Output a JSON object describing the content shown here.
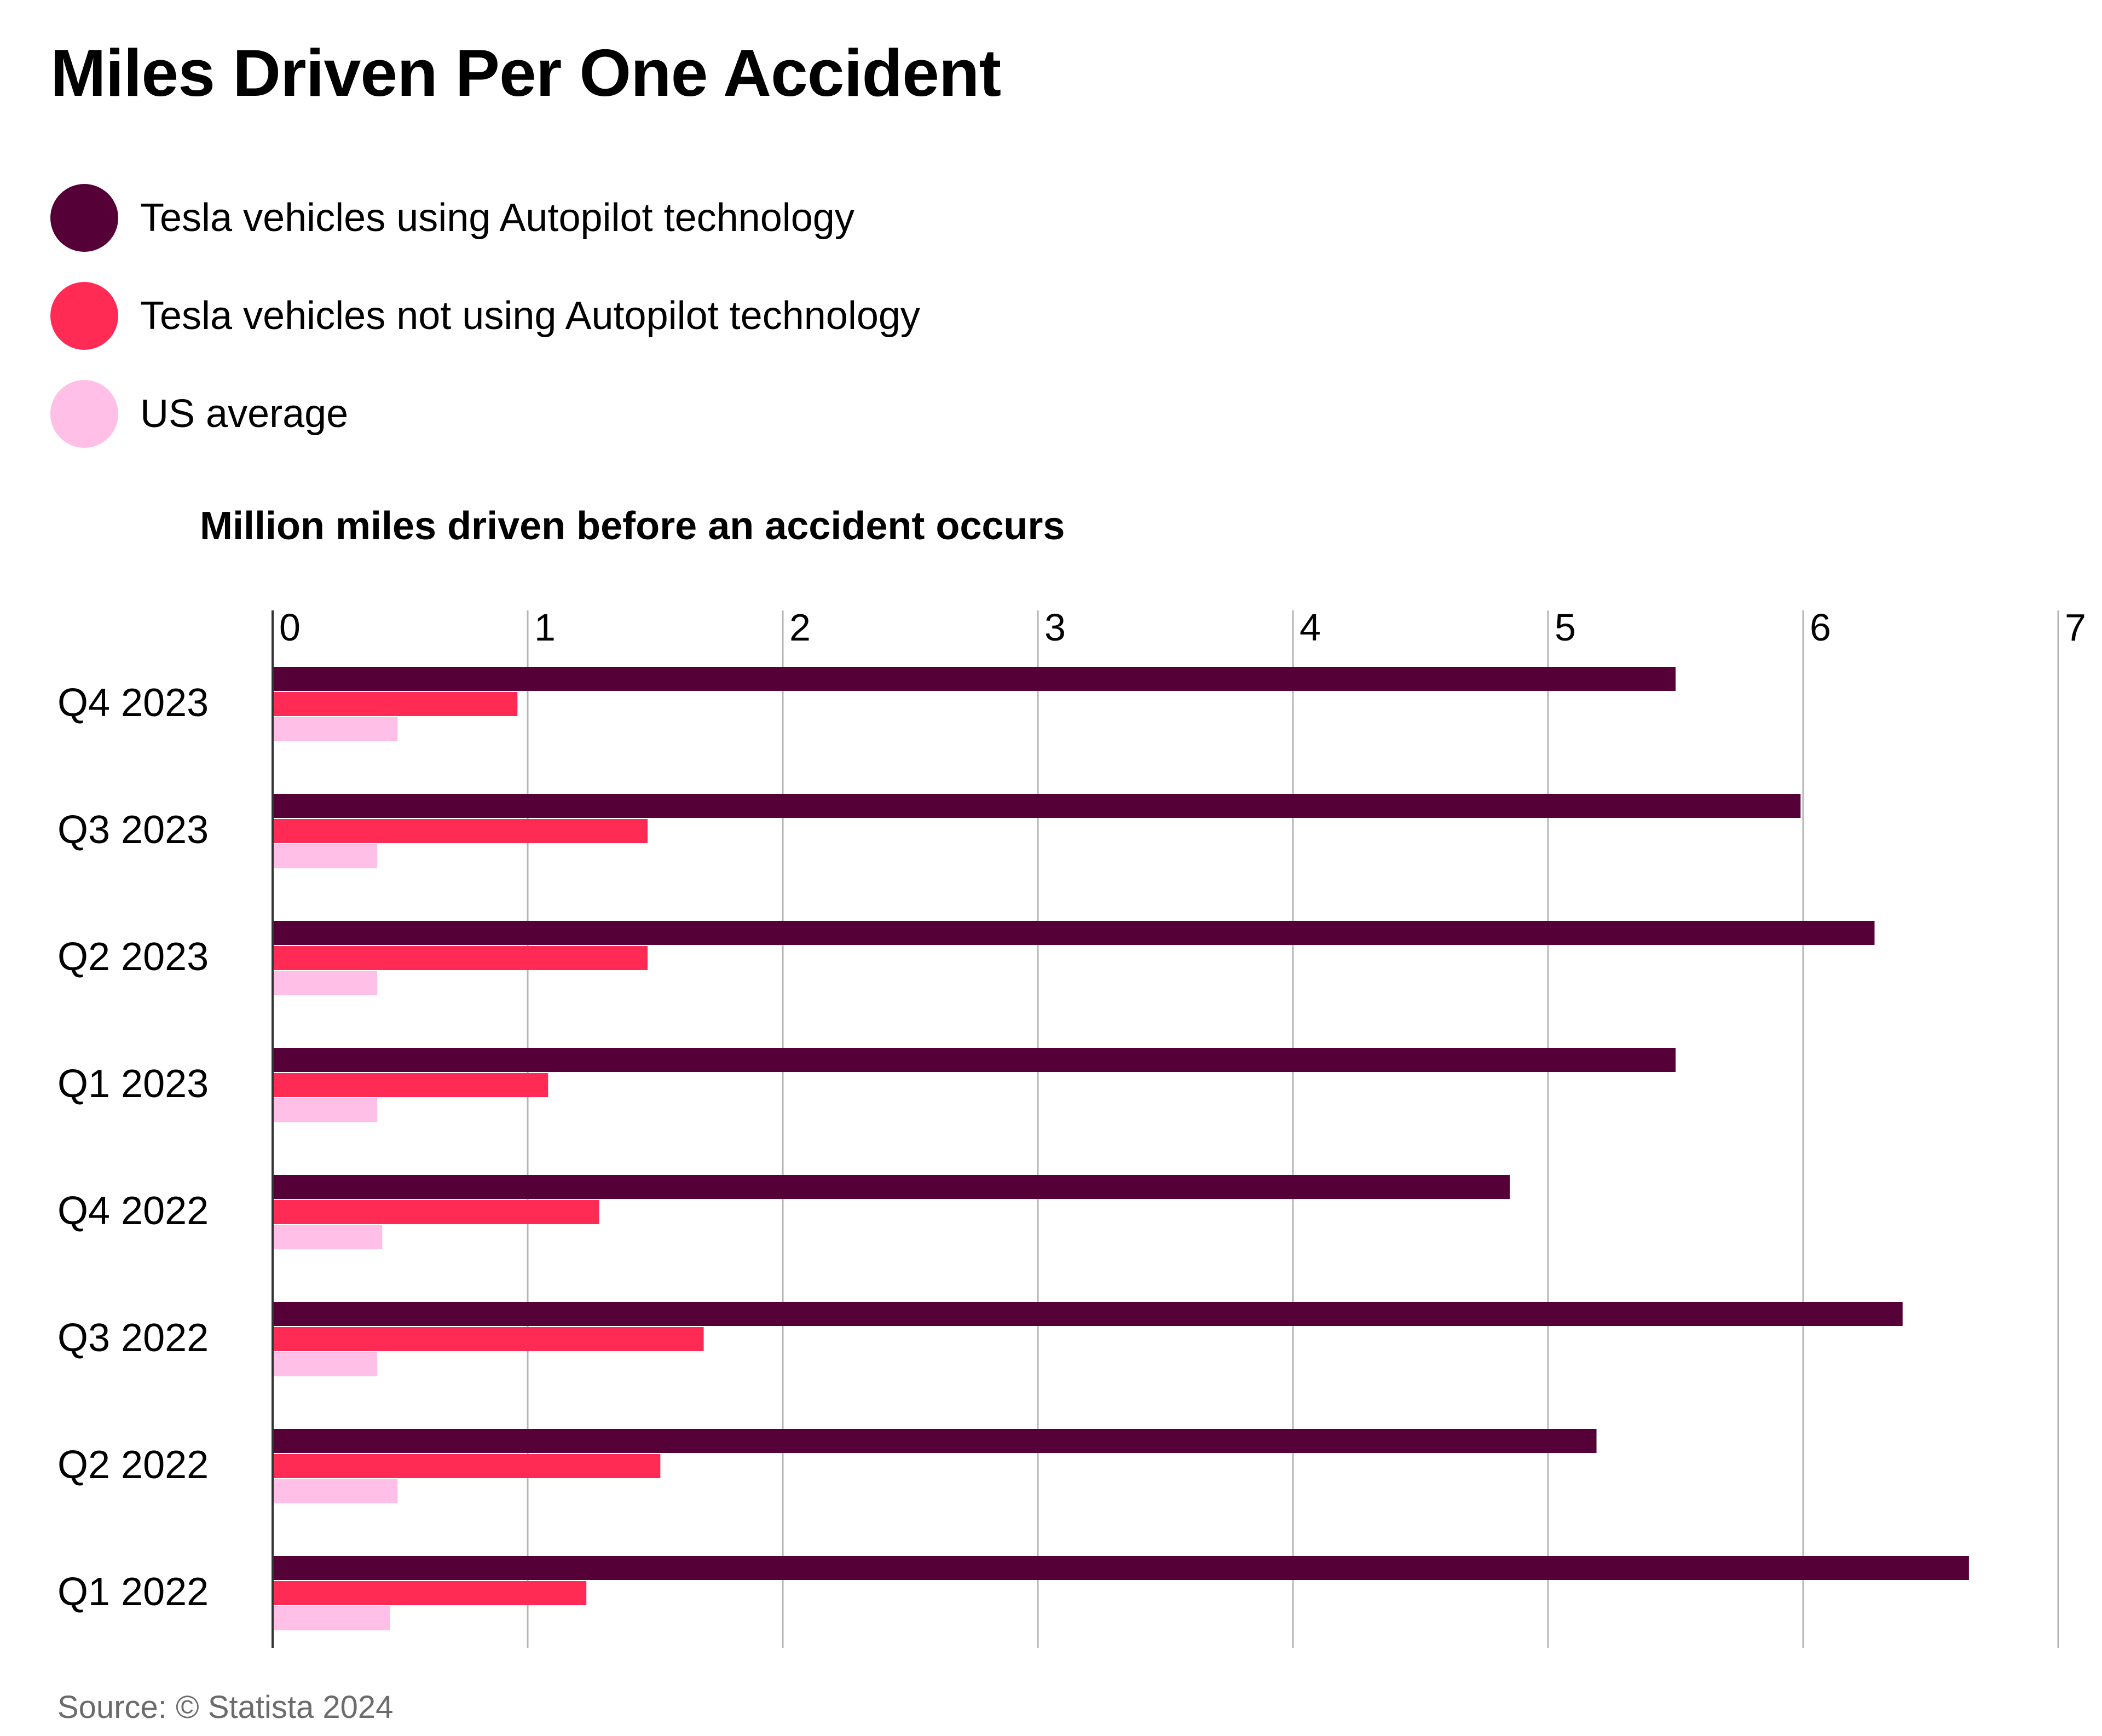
{
  "chart_data": {
    "type": "bar",
    "orientation": "horizontal",
    "title": "Miles Driven Per One Accident",
    "subtitle": "Million miles driven before an accident occurs",
    "categories": [
      "Q4 2023",
      "Q3 2023",
      "Q2 2023",
      "Q1 2023",
      "Q4 2022",
      "Q3 2022",
      "Q2 2022",
      "Q1 2022"
    ],
    "series": [
      {
        "name": "Tesla vehicles using Autopilot technology",
        "color": "#560038",
        "values": [
          5.5,
          5.99,
          6.28,
          5.5,
          4.85,
          6.39,
          5.19,
          6.65
        ]
      },
      {
        "name": "Tesla vehicles not using Autopilot technology",
        "color": "#ff2b55",
        "values": [
          0.96,
          1.47,
          1.47,
          1.08,
          1.28,
          1.69,
          1.52,
          1.23
        ]
      },
      {
        "name": "US average",
        "color": "#ffbfe6",
        "values": [
          0.49,
          0.41,
          0.41,
          0.41,
          0.43,
          0.41,
          0.49,
          0.46
        ]
      }
    ],
    "xticks": [
      "0",
      "1",
      "2",
      "3",
      "4",
      "5",
      "6",
      "7"
    ],
    "xlim": [
      0,
      7
    ],
    "grid": true,
    "legend": "top-left",
    "source": "Source: © Statista 2024"
  }
}
